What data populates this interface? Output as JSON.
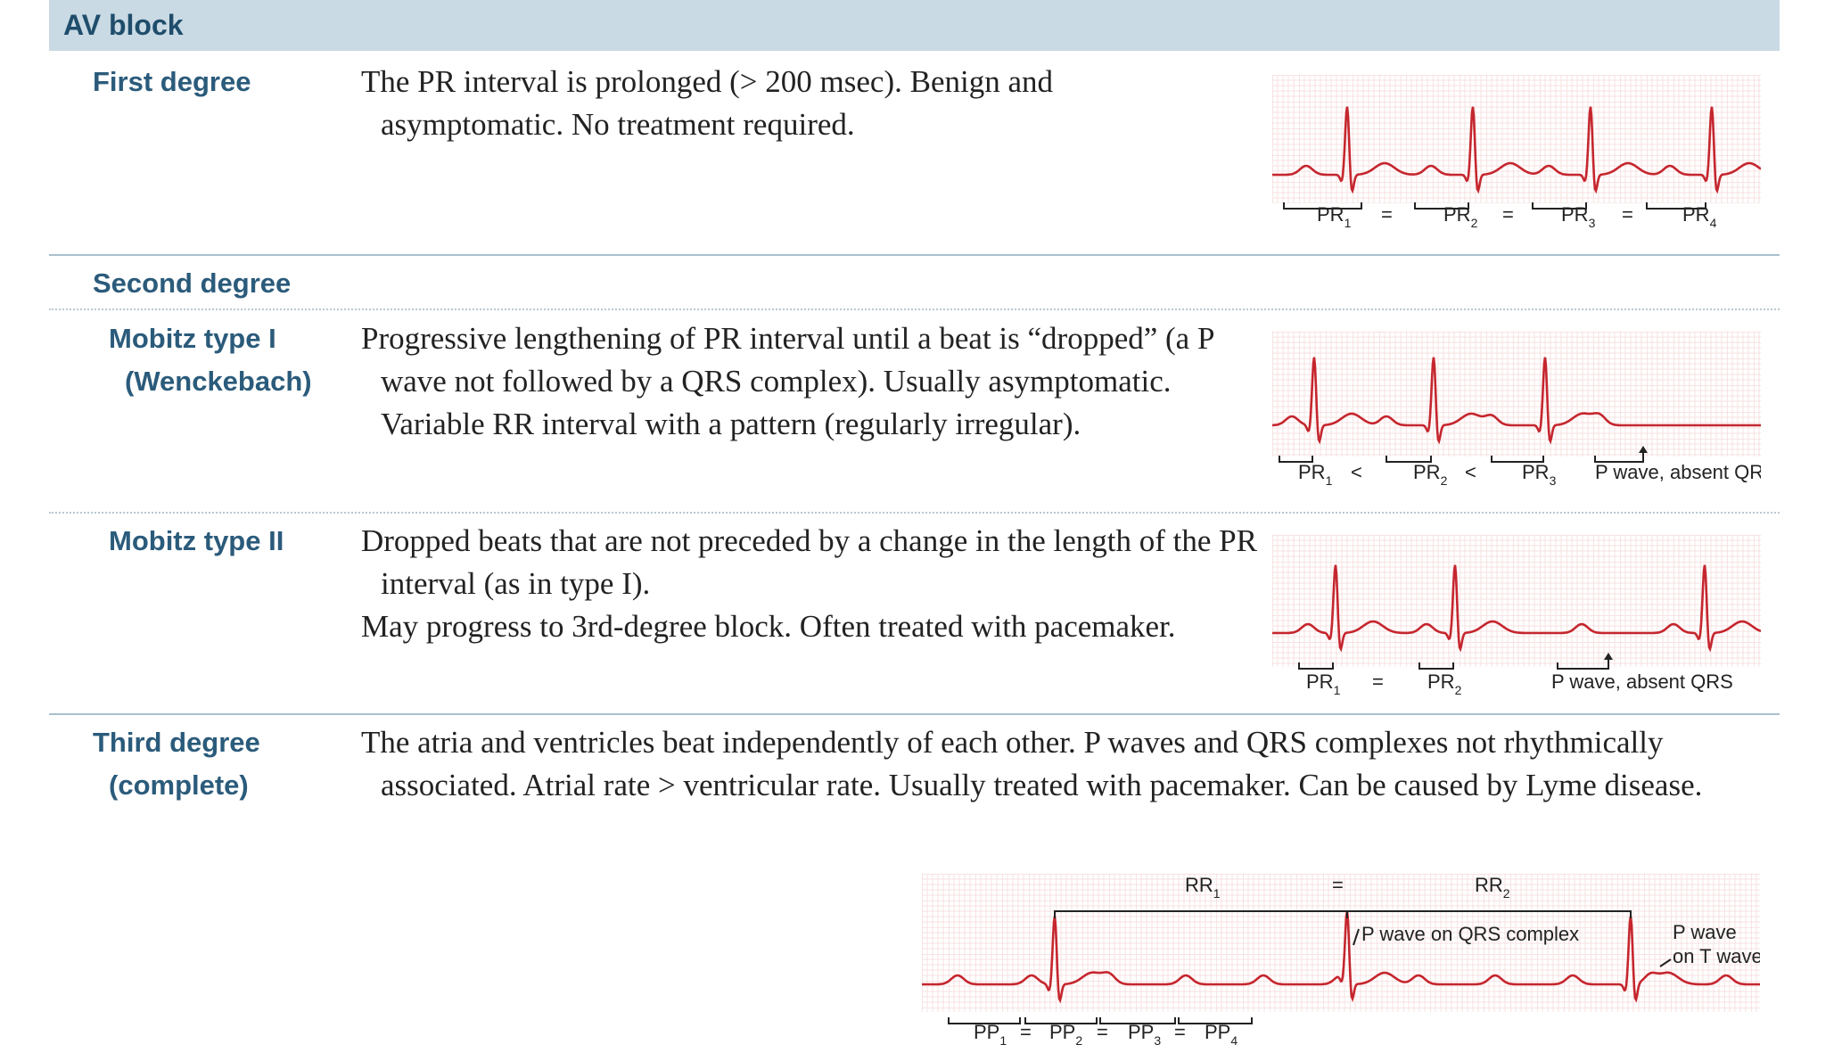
{
  "header": {
    "title": "AV block"
  },
  "rows": [
    {
      "label": [
        "First degree"
      ],
      "paragraphs": [
        "The PR interval is prolonged (> 200 msec). Benign and asymptomatic. No treatment required."
      ]
    },
    {
      "label": [
        "Second degree"
      ],
      "paragraphs": []
    },
    {
      "label": [
        "Mobitz type I",
        "(Wenckebach)"
      ],
      "paragraphs": [
        "Progressive lengthening of PR interval until a beat is “dropped” (a P wave not followed by a QRS complex). Usually asymptomatic. Variable RR interval with a pattern (regularly irregular)."
      ]
    },
    {
      "label": [
        "Mobitz type II"
      ],
      "paragraphs": [
        "Dropped beats that are not preceded by a change in the length of the PR interval (as in type I).",
        "May progress to 3rd-degree block. Often treated with pacemaker."
      ]
    },
    {
      "label": [
        "Third degree",
        "(complete)"
      ],
      "paragraphs": [
        "The atria and ventricles beat independently of each other. P waves and QRS complexes not rhythmically associated. Atrial rate > ventricular rate. Usually treated with pacemaker. Can be caused by Lyme disease."
      ]
    }
  ],
  "strips": [
    {
      "labels": [
        {
          "text": "PR",
          "sub": "1"
        },
        {
          "text": "="
        },
        {
          "text": "PR",
          "sub": "2"
        },
        {
          "text": "="
        },
        {
          "text": "PR",
          "sub": "3"
        },
        {
          "text": "="
        },
        {
          "text": "PR",
          "sub": "4"
        }
      ]
    },
    {
      "labels": [
        {
          "text": "PR",
          "sub": "1"
        },
        {
          "text": "<"
        },
        {
          "text": "PR",
          "sub": "2"
        },
        {
          "text": "<"
        },
        {
          "text": "PR",
          "sub": "3"
        },
        {
          "text": "P wave, absent QRS"
        }
      ]
    },
    {
      "labels": [
        {
          "text": "PR",
          "sub": "1"
        },
        {
          "text": "="
        },
        {
          "text": "PR",
          "sub": "2"
        },
        {
          "text": "P wave, absent QRS"
        }
      ]
    },
    {
      "labels": [
        {
          "text": "RR",
          "sub": "1"
        },
        {
          "text": "="
        },
        {
          "text": "RR",
          "sub": "2"
        },
        {
          "text": "P wave on QRS complex"
        },
        {
          "text": "P wave"
        },
        {
          "text": "on T wave"
        },
        {
          "text": "PP",
          "sub": "1"
        },
        {
          "text": "="
        },
        {
          "text": "PP",
          "sub": "2"
        },
        {
          "text": "="
        },
        {
          "text": "PP",
          "sub": "3"
        },
        {
          "text": "="
        },
        {
          "text": "PP",
          "sub": "4"
        }
      ]
    }
  ]
}
